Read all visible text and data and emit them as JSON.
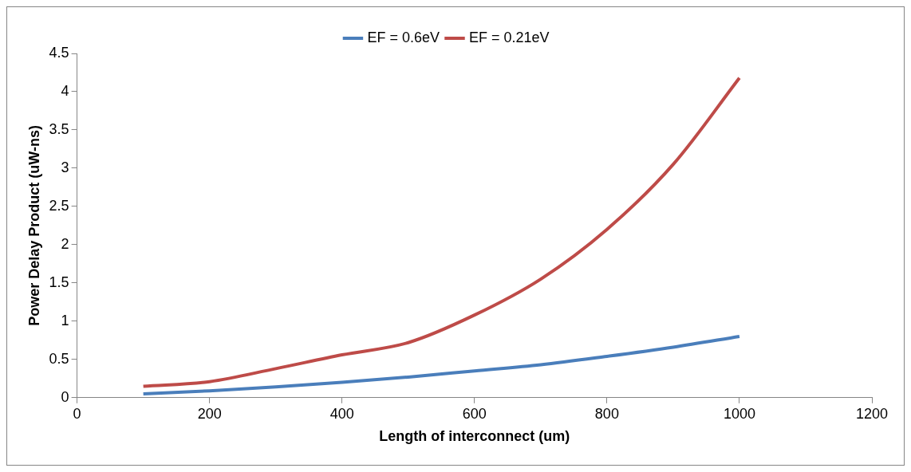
{
  "chart_data": {
    "type": "line",
    "xlabel": "Length of interconnect (um)",
    "ylabel": "Power Delay Product (uW-ns)",
    "x": [
      100,
      200,
      300,
      400,
      500,
      600,
      700,
      800,
      900,
      1000
    ],
    "series": [
      {
        "name": "EF = 0.6eV",
        "color": "#4a7ebb",
        "values": [
          0.05,
          0.09,
          0.14,
          0.2,
          0.27,
          0.35,
          0.43,
          0.54,
          0.66,
          0.8
        ]
      },
      {
        "name": "EF = 0.21eV",
        "color": "#be4b48",
        "values": [
          0.15,
          0.21,
          0.38,
          0.56,
          0.72,
          1.08,
          1.55,
          2.2,
          3.05,
          4.18
        ]
      }
    ],
    "xlim": [
      0,
      1200
    ],
    "xticks": [
      0,
      200,
      400,
      600,
      800,
      1000,
      1200
    ],
    "ylim": [
      0,
      4.5
    ],
    "yticks": [
      0,
      0.5,
      1,
      1.5,
      2,
      2.5,
      3,
      3.5,
      4,
      4.5
    ],
    "grid": false,
    "legend": "top",
    "marker": "none",
    "line_style": "solid"
  }
}
